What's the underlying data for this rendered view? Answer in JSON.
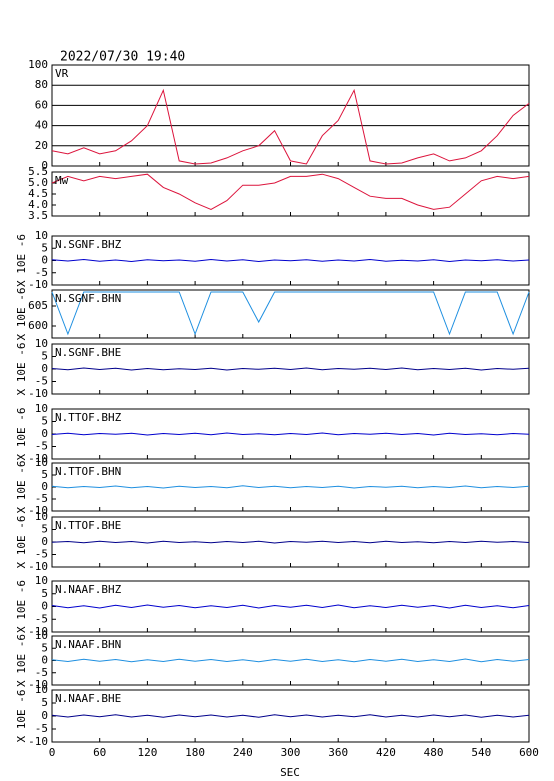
{
  "chart_data": {
    "type": "line",
    "title": "2022/07/30 19:40",
    "xlabel": "SEC",
    "xlim": [
      0,
      600
    ],
    "xticks": [
      0,
      60,
      120,
      180,
      240,
      300,
      360,
      420,
      480,
      540,
      600
    ],
    "x": [
      0,
      20,
      40,
      60,
      80,
      100,
      120,
      140,
      160,
      180,
      200,
      220,
      240,
      260,
      280,
      300,
      320,
      340,
      360,
      380,
      400,
      420,
      440,
      460,
      480,
      500,
      520,
      540,
      560,
      580,
      600
    ],
    "panels": [
      {
        "name": "VR",
        "color": "#dc143c",
        "ylim": [
          0,
          100
        ],
        "yticks": [
          0,
          20,
          40,
          60,
          80,
          100
        ],
        "grid": true,
        "values": [
          15,
          12,
          18,
          12,
          15,
          25,
          40,
          75,
          5,
          2,
          3,
          8,
          15,
          20,
          35,
          5,
          2,
          30,
          45,
          75,
          5,
          2,
          3,
          8,
          12,
          5,
          8,
          15,
          30,
          50,
          62
        ]
      },
      {
        "name": "Mw",
        "color": "#dc143c",
        "ylim": [
          3.5,
          5.5
        ],
        "yticks": [
          3.5,
          {
            "value": 4,
            "label": "4.0"
          },
          4.5,
          {
            "value": 5,
            "label": "5.0"
          },
          5.5
        ],
        "values": [
          5.0,
          5.3,
          5.1,
          5.3,
          5.2,
          5.3,
          5.4,
          4.8,
          4.5,
          4.1,
          3.8,
          4.2,
          4.9,
          4.9,
          5.0,
          5.3,
          5.3,
          5.4,
          5.2,
          4.8,
          4.4,
          4.3,
          4.3,
          4.0,
          3.8,
          3.9,
          4.5,
          5.1,
          5.3,
          5.2,
          5.3
        ]
      },
      {
        "name": "N.SGNF.BHZ",
        "color": "#0000cd",
        "ylabel": "X 10E -6",
        "ylim": [
          -10,
          10
        ],
        "yticks": [
          -10,
          -5,
          0,
          5,
          10
        ],
        "values": [
          0.3,
          -0.2,
          0.4,
          -0.3,
          0.2,
          -0.4,
          0.3,
          -0.1,
          0.2,
          -0.3,
          0.4,
          -0.2,
          0.3,
          -0.4,
          0.2,
          -0.1,
          0.3,
          -0.3,
          0.2,
          -0.2,
          0.4,
          -0.3,
          0.1,
          -0.2,
          0.3,
          -0.4,
          0.2,
          -0.1,
          0.3,
          -0.2,
          0.2
        ]
      },
      {
        "name": "N.SGNF.BHN",
        "color": "#1e8fe0",
        "ylabel": "X 10E -6",
        "ylim": [
          597,
          609
        ],
        "yticks": [
          600,
          605
        ],
        "values": [
          608.5,
          598,
          608.5,
          608.5,
          608.5,
          608.5,
          608.5,
          608.5,
          608.5,
          598,
          608.5,
          608.5,
          608.5,
          601,
          608.5,
          608.5,
          608.5,
          608.5,
          608.5,
          608.5,
          608.5,
          608.5,
          608.5,
          608.5,
          608.5,
          598,
          608.5,
          608.5,
          608.5,
          598,
          608.5
        ]
      },
      {
        "name": "N.SGNF.BHE",
        "color": "#00008b",
        "ylabel": "X 10E -6",
        "ylim": [
          -10,
          10
        ],
        "yticks": [
          -10,
          -5,
          0,
          5,
          10
        ],
        "values": [
          0.2,
          -0.3,
          0.4,
          -0.2,
          0.3,
          -0.4,
          0.2,
          -0.3,
          0.1,
          -0.2,
          0.3,
          -0.4,
          0.2,
          -0.1,
          0.3,
          -0.2,
          0.4,
          -0.3,
          0.2,
          -0.1,
          0.3,
          -0.2,
          0.4,
          -0.3,
          0.2,
          -0.2,
          0.3,
          -0.4,
          0.2,
          -0.1,
          0.3
        ]
      },
      {
        "name": "N.TTOF.BHZ",
        "color": "#0000cd",
        "ylabel": "X 10E -6",
        "ylim": [
          -10,
          10
        ],
        "yticks": [
          -10,
          -5,
          0,
          5,
          10
        ],
        "values": [
          -0.2,
          0.3,
          -0.3,
          0.2,
          -0.1,
          0.3,
          -0.4,
          0.2,
          -0.2,
          0.3,
          -0.3,
          0.4,
          -0.2,
          0.1,
          -0.3,
          0.2,
          -0.2,
          0.4,
          -0.3,
          0.2,
          -0.1,
          0.3,
          -0.2,
          0.2,
          -0.4,
          0.3,
          -0.2,
          0.1,
          -0.3,
          0.2,
          -0.1
        ]
      },
      {
        "name": "N.TTOF.BHN",
        "color": "#1e8fe0",
        "ylabel": "X 10E -6",
        "ylim": [
          -10,
          10
        ],
        "yticks": [
          -10,
          -5,
          0,
          5,
          10
        ],
        "values": [
          0.3,
          -0.3,
          0.2,
          -0.2,
          0.4,
          -0.3,
          0.2,
          -0.4,
          0.3,
          -0.2,
          0.2,
          -0.3,
          0.5,
          -0.2,
          0.3,
          -0.3,
          0.2,
          -0.2,
          0.3,
          -0.4,
          0.2,
          -0.1,
          0.3,
          -0.3,
          0.2,
          -0.2,
          0.4,
          -0.3,
          0.2,
          -0.2,
          0.3
        ]
      },
      {
        "name": "N.TTOF.BHE",
        "color": "#00008b",
        "ylabel": "X 10E -6",
        "ylim": [
          -10,
          10
        ],
        "yticks": [
          -10,
          -5,
          0,
          5,
          10
        ],
        "values": [
          -0.1,
          0.2,
          -0.3,
          0.3,
          -0.2,
          0.2,
          -0.4,
          0.3,
          -0.2,
          0.1,
          -0.3,
          0.2,
          -0.2,
          0.3,
          -0.4,
          0.2,
          -0.1,
          0.3,
          -0.2,
          0.2,
          -0.3,
          0.3,
          -0.2,
          0.1,
          -0.3,
          0.2,
          -0.2,
          0.3,
          -0.1,
          0.2,
          -0.2
        ]
      },
      {
        "name": "N.NAAF.BHZ",
        "color": "#0000cd",
        "ylabel": "X 10E -6",
        "ylim": [
          -10,
          10
        ],
        "yticks": [
          -10,
          -5,
          0,
          5,
          10
        ],
        "values": [
          0.4,
          -0.5,
          0.3,
          -0.6,
          0.5,
          -0.4,
          0.6,
          -0.3,
          0.4,
          -0.5,
          0.3,
          -0.4,
          0.5,
          -0.6,
          0.4,
          -0.3,
          0.5,
          -0.4,
          0.6,
          -0.5,
          0.3,
          -0.4,
          0.5,
          -0.3,
          0.4,
          -0.6,
          0.5,
          -0.4,
          0.3,
          -0.5,
          0.4
        ]
      },
      {
        "name": "N.NAAF.BHN",
        "color": "#1e8fe0",
        "ylabel": "X 10E -6",
        "ylim": [
          -10,
          10
        ],
        "yticks": [
          -10,
          -5,
          0,
          5,
          10
        ],
        "values": [
          0.3,
          -0.4,
          0.5,
          -0.3,
          0.4,
          -0.5,
          0.3,
          -0.4,
          0.5,
          -0.3,
          0.4,
          -0.4,
          0.3,
          -0.5,
          0.4,
          -0.3,
          0.5,
          -0.4,
          0.3,
          -0.5,
          0.4,
          -0.3,
          0.5,
          -0.4,
          0.3,
          -0.4,
          0.6,
          -0.5,
          0.4,
          -0.3,
          0.4
        ]
      },
      {
        "name": "N.NAAF.BHE",
        "color": "#00008b",
        "ylabel": "X 10E -6",
        "ylim": [
          -10,
          10
        ],
        "yticks": [
          -10,
          -5,
          0,
          5,
          10
        ],
        "values": [
          0.3,
          -0.4,
          0.4,
          -0.3,
          0.5,
          -0.4,
          0.3,
          -0.5,
          0.4,
          -0.3,
          0.4,
          -0.4,
          0.3,
          -0.5,
          0.5,
          -0.3,
          0.4,
          -0.4,
          0.3,
          -0.3,
          0.5,
          -0.4,
          0.3,
          -0.4,
          0.4,
          -0.3,
          0.4,
          -0.5,
          0.3,
          -0.4,
          0.3
        ]
      }
    ]
  }
}
